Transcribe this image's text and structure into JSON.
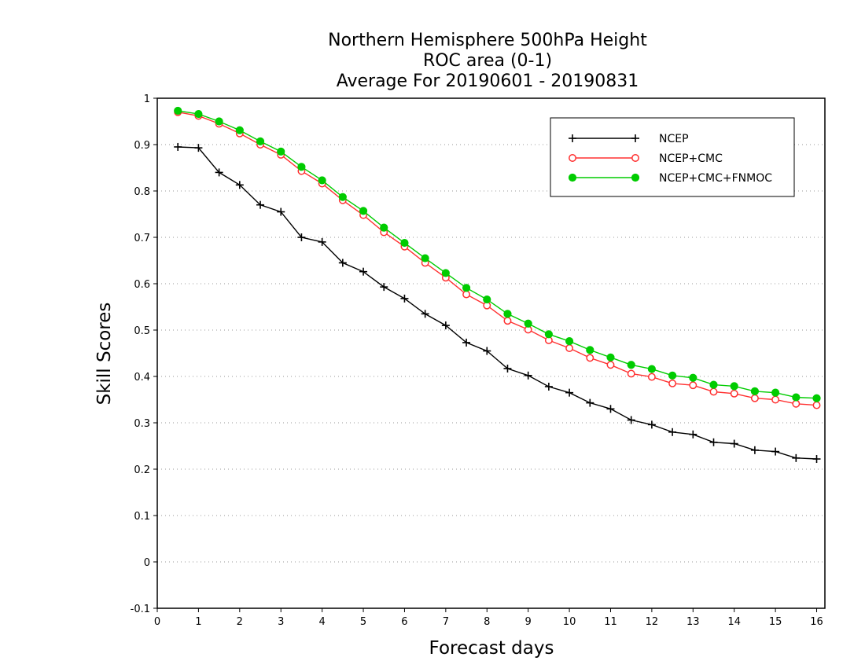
{
  "chart_data": {
    "type": "line",
    "title": [
      "Northern Hemisphere 500hPa Height",
      "ROC area (0-1)",
      "Average For 20190601 - 20190831"
    ],
    "xlabel": "Forecast days",
    "ylabel": "Skill Scores",
    "xlim": [
      0,
      16.2
    ],
    "ylim": [
      -0.1,
      1
    ],
    "xticks": [
      0,
      1,
      2,
      3,
      4,
      5,
      6,
      7,
      8,
      9,
      10,
      11,
      12,
      13,
      14,
      15,
      16
    ],
    "xtick_labels": [
      "0",
      "1",
      "2",
      "3",
      "4",
      "5",
      "6",
      "7",
      "8",
      "9",
      "10",
      "11",
      "12",
      "13",
      "14",
      "15",
      "16"
    ],
    "yticks": [
      -0.1,
      0,
      0.1,
      0.2,
      0.3,
      0.4,
      0.5,
      0.6,
      0.7,
      0.8,
      0.9,
      1
    ],
    "ytick_labels": [
      "-0.1",
      "0",
      "0.1",
      "0.2",
      "0.3",
      "0.4",
      "0.5",
      "0.6",
      "0.7",
      "0.8",
      "0.9",
      "1"
    ],
    "grid": "horizontal dotted",
    "legend_position": "top-right",
    "x": [
      0.5,
      1,
      1.5,
      2,
      2.5,
      3,
      3.5,
      4,
      4.5,
      5,
      5.5,
      6,
      6.5,
      7,
      7.5,
      8,
      8.5,
      9,
      9.5,
      10,
      10.5,
      11,
      11.5,
      12,
      12.5,
      13,
      13.5,
      14,
      14.5,
      15,
      15.5,
      16
    ],
    "series": [
      {
        "name": "NCEP",
        "color": "#000000",
        "marker": "plus",
        "values": [
          0.895,
          0.893,
          0.84,
          0.813,
          0.77,
          0.755,
          0.7,
          0.69,
          0.645,
          0.626,
          0.593,
          0.568,
          0.535,
          0.51,
          0.473,
          0.455,
          0.417,
          0.402,
          0.378,
          0.365,
          0.343,
          0.33,
          0.306,
          0.296,
          0.28,
          0.275,
          0.258,
          0.255,
          0.241,
          0.238,
          0.224,
          0.222
        ]
      },
      {
        "name": "NCEP+CMC",
        "color": "#ff3030",
        "marker": "open-circle",
        "values": [
          0.97,
          0.962,
          0.945,
          0.924,
          0.9,
          0.878,
          0.843,
          0.816,
          0.78,
          0.748,
          0.711,
          0.68,
          0.645,
          0.613,
          0.577,
          0.553,
          0.52,
          0.501,
          0.478,
          0.461,
          0.44,
          0.425,
          0.406,
          0.399,
          0.385,
          0.381,
          0.367,
          0.363,
          0.353,
          0.35,
          0.341,
          0.338
        ]
      },
      {
        "name": "NCEP+CMC+FNMOC",
        "color": "#00cc00",
        "marker": "filled-circle",
        "values": [
          0.973,
          0.966,
          0.95,
          0.931,
          0.907,
          0.885,
          0.852,
          0.823,
          0.787,
          0.757,
          0.721,
          0.688,
          0.655,
          0.623,
          0.591,
          0.566,
          0.535,
          0.514,
          0.491,
          0.476,
          0.457,
          0.441,
          0.425,
          0.416,
          0.402,
          0.397,
          0.382,
          0.379,
          0.368,
          0.365,
          0.355,
          0.353
        ]
      }
    ]
  }
}
